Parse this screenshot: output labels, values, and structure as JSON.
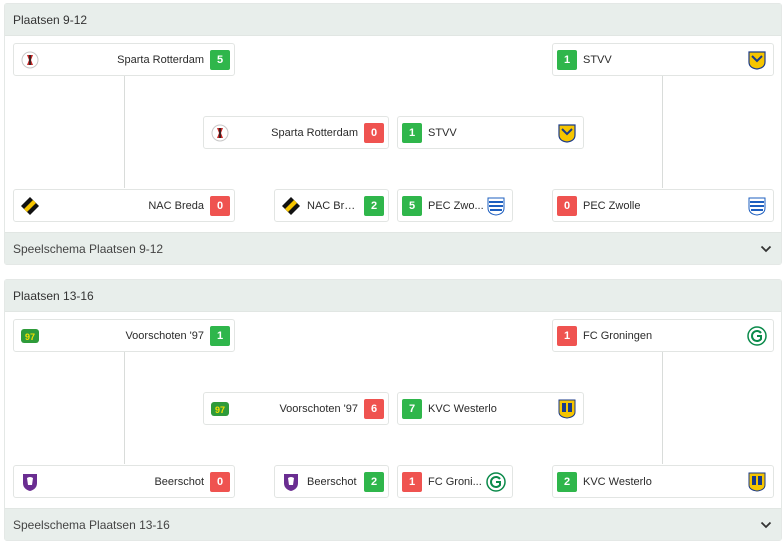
{
  "colors": {
    "win": "#2fb64b",
    "loss": "#ef5350",
    "header_bg": "#e8eeeb"
  },
  "sections": [
    {
      "title": "Plaatsen 9-12",
      "footer": "Speelschema Plaatsen 9-12",
      "left_top": {
        "team": "Sparta Rotterdam",
        "score": "5",
        "icon": "sparta-logo"
      },
      "left_bottom": {
        "team": "NAC Breda",
        "score": "0",
        "icon": "nac-logo"
      },
      "right_top": {
        "team": "STVV",
        "score": "1",
        "icon": "stvv-logo"
      },
      "right_bottom": {
        "team": "PEC Zwolle",
        "score": "0",
        "icon": "pec-logo"
      },
      "final_left": {
        "team": "Sparta Rotterdam",
        "score": "0",
        "icon": "sparta-logo"
      },
      "final_right": {
        "team": "STVV",
        "score": "1",
        "icon": "stvv-logo"
      },
      "third_left": {
        "team": "NAC Bre...",
        "score": "2",
        "icon": "nac-logo"
      },
      "third_right": {
        "team": "PEC Zwo...",
        "score": "5",
        "icon": "pec-logo"
      }
    },
    {
      "title": "Plaatsen 13-16",
      "footer": "Speelschema Plaatsen 13-16",
      "left_top": {
        "team": "Voorschoten '97",
        "score": "1",
        "icon": "voorschoten-logo"
      },
      "left_bottom": {
        "team": "Beerschot",
        "score": "0",
        "icon": "beerschot-logo"
      },
      "right_top": {
        "team": "FC Groningen",
        "score": "1",
        "icon": "groningen-logo"
      },
      "right_bottom": {
        "team": "KVC Westerlo",
        "score": "2",
        "icon": "westerlo-logo"
      },
      "final_left": {
        "team": "Voorschoten '97",
        "score": "6",
        "icon": "voorschoten-logo"
      },
      "final_right": {
        "team": "KVC Westerlo",
        "score": "7",
        "icon": "westerlo-logo"
      },
      "third_left": {
        "team": "Beerschot",
        "score": "2",
        "icon": "beerschot-logo"
      },
      "third_right": {
        "team": "FC Groni...",
        "score": "1",
        "icon": "groningen-logo"
      }
    }
  ]
}
